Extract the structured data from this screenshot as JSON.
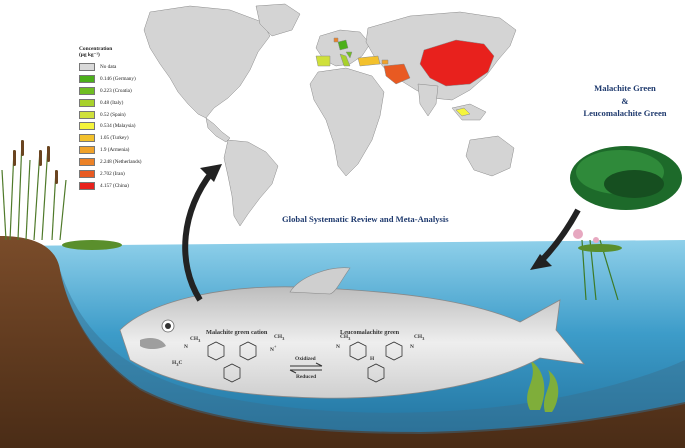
{
  "legend": {
    "title": "Concentration",
    "unit": "(μg kg⁻¹)",
    "items": [
      {
        "label": "No data",
        "color": "#d9d9d9"
      },
      {
        "label": "0.146 (Germany)",
        "color": "#4caf1a"
      },
      {
        "label": "0.223 (Croatia)",
        "color": "#6fbe22"
      },
      {
        "label": "0.48 (Italy)",
        "color": "#a8d12b"
      },
      {
        "label": "0.52 (Spain)",
        "color": "#cfe03a"
      },
      {
        "label": "0.534 (Malaysia)",
        "color": "#f5f53b"
      },
      {
        "label": "1.05 (Turkey)",
        "color": "#f3c12c"
      },
      {
        "label": "1.9 (Armenia)",
        "color": "#f0a22a"
      },
      {
        "label": "2.248 (Netherlands)",
        "color": "#ec8227"
      },
      {
        "label": "2.702 (Iran)",
        "color": "#e85a22"
      },
      {
        "label": "4.157 (China)",
        "color": "#e8211d"
      }
    ]
  },
  "map_title": "Global Systematic Review and Meta-Analysis",
  "compound_title": {
    "line1": "Malachite Green",
    "line2": "&",
    "line3": "Leucomalachite Green"
  },
  "molecules": {
    "left_name": "Malachite green cation",
    "right_name": "Leucomalachite green",
    "reaction_top": "Oxidized",
    "reaction_bottom": "Reduced",
    "ch3": "CH",
    "sub3": "3",
    "h3c": "H",
    "n": "N",
    "h": "H",
    "plus": "+"
  },
  "colors": {
    "water": "#5ab2d8",
    "soil": "#6b4226",
    "ocean": "#ffffff",
    "land": "#d4d4d4",
    "arrow": "#222222"
  }
}
